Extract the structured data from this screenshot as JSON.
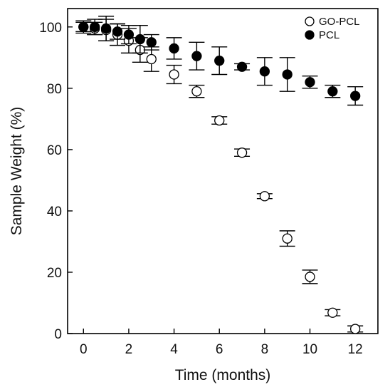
{
  "chart_data": {
    "type": "scatter",
    "xlabel": "Time (months)",
    "ylabel": "Sample Weight (%)",
    "xlim": [
      -0.7,
      13.0
    ],
    "ylim": [
      0,
      106
    ],
    "xticks": [
      0,
      2,
      4,
      6,
      8,
      10,
      12
    ],
    "yticks": [
      0,
      20,
      40,
      60,
      80,
      100
    ],
    "grid": false,
    "legend_position": "top-right",
    "series": [
      {
        "name": "GO-PCL",
        "marker": "open-circle",
        "color": "#000000",
        "points": [
          {
            "x": 0,
            "y": 100,
            "err": 1.5
          },
          {
            "x": 0.5,
            "y": 99.5,
            "err": 2.0
          },
          {
            "x": 1,
            "y": 99,
            "err": 3.5
          },
          {
            "x": 1.5,
            "y": 97.5,
            "err": 3.5
          },
          {
            "x": 2,
            "y": 95.5,
            "err": 4.0
          },
          {
            "x": 2.5,
            "y": 92.5,
            "err": 4.0
          },
          {
            "x": 3,
            "y": 89.5,
            "err": 4.0
          },
          {
            "x": 4,
            "y": 84.5,
            "err": 3.0
          },
          {
            "x": 5,
            "y": 79,
            "err": 2.0
          },
          {
            "x": 6,
            "y": 69.5,
            "err": 1.2
          },
          {
            "x": 7,
            "y": 59,
            "err": 1.2
          },
          {
            "x": 8,
            "y": 44.8,
            "err": 0.8
          },
          {
            "x": 9,
            "y": 31,
            "err": 2.5
          },
          {
            "x": 10,
            "y": 18.5,
            "err": 2.2
          },
          {
            "x": 11,
            "y": 6.8,
            "err": 1.0
          },
          {
            "x": 12,
            "y": 1.5,
            "err": 1.0
          }
        ]
      },
      {
        "name": "PCL",
        "marker": "filled-circle",
        "color": "#000000",
        "points": [
          {
            "x": 0,
            "y": 100,
            "err": 2.0
          },
          {
            "x": 0.5,
            "y": 100,
            "err": 2.5
          },
          {
            "x": 1,
            "y": 99.5,
            "err": 4.0
          },
          {
            "x": 1.5,
            "y": 98.5,
            "err": 2.5
          },
          {
            "x": 2,
            "y": 97.5,
            "err": 3.0
          },
          {
            "x": 2.5,
            "y": 96,
            "err": 4.5
          },
          {
            "x": 3,
            "y": 95,
            "err": 2.5
          },
          {
            "x": 4,
            "y": 93,
            "err": 3.5
          },
          {
            "x": 5,
            "y": 90.5,
            "err": 4.5
          },
          {
            "x": 6,
            "y": 89,
            "err": 4.5
          },
          {
            "x": 7,
            "y": 87,
            "err": 1.0
          },
          {
            "x": 8,
            "y": 85.5,
            "err": 4.5
          },
          {
            "x": 9,
            "y": 84.5,
            "err": 5.5
          },
          {
            "x": 10,
            "y": 82,
            "err": 2.0
          },
          {
            "x": 11,
            "y": 79,
            "err": 2.0
          },
          {
            "x": 12,
            "y": 77.5,
            "err": 3.0
          }
        ]
      }
    ]
  }
}
